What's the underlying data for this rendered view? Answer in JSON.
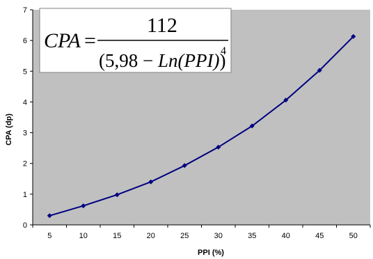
{
  "chart_data": {
    "type": "line",
    "xlabel": "PPI (%)",
    "ylabel": "CPA (dp)",
    "x": [
      5,
      10,
      15,
      20,
      25,
      30,
      35,
      40,
      45,
      50
    ],
    "series": [
      {
        "values": [
          0.3,
          0.62,
          0.98,
          1.4,
          1.93,
          2.53,
          3.22,
          4.06,
          5.03,
          6.13
        ]
      }
    ],
    "ylim": [
      0,
      7
    ],
    "yticks": [
      "0",
      "1",
      "2",
      "3",
      "4",
      "5",
      "6",
      "7"
    ],
    "xticks": [
      "5",
      "10",
      "15",
      "20",
      "25",
      "30",
      "35",
      "40",
      "45",
      "50"
    ],
    "grid": false,
    "colors": {
      "plot_background": "#c0c0c0",
      "series": "#000080",
      "formula_box": "#ffffff"
    },
    "annotation": {
      "lhs": "CPA",
      "equals": "=",
      "numerator": "112",
      "denominator_open": "(5,98 − ",
      "denominator_fn": "Ln(PPI)",
      "denominator_close": ")",
      "exponent": "4"
    }
  }
}
